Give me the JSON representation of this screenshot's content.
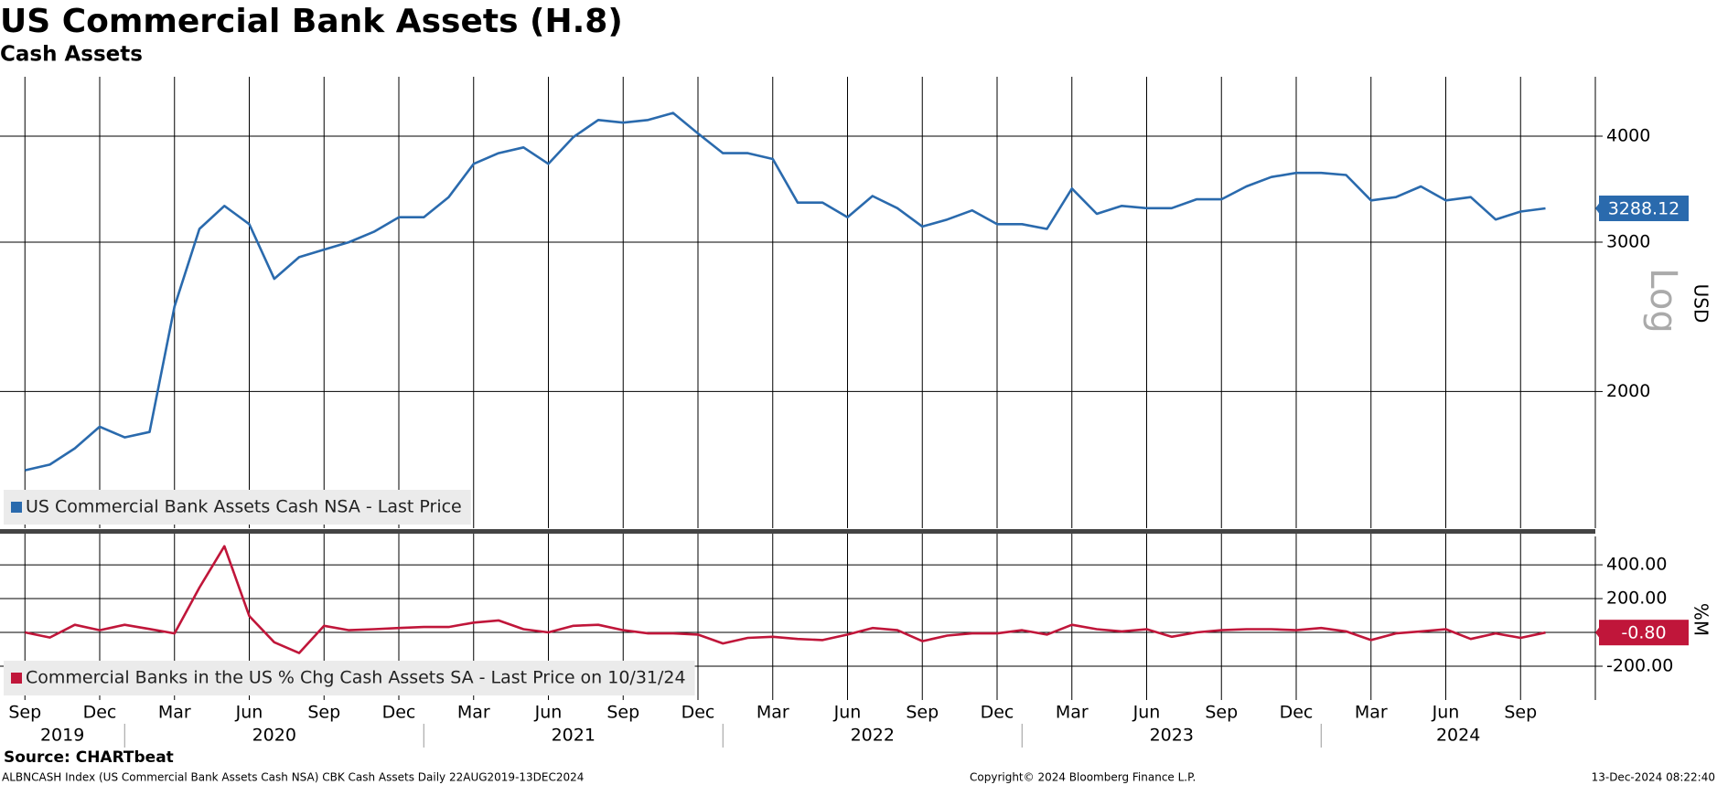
{
  "title": "US Commercial Bank Assets (H.8)",
  "subtitle": "Cash Assets",
  "footer": {
    "source": "Source: CHARTbeat",
    "left": "ALBNCASH Index (US Commercial Bank Assets Cash NSA) CBK Cash Assets  Daily 22AUG2019-13DEC2024",
    "center": "Copyright© 2024 Bloomberg Finance L.P.",
    "right": "13-Dec-2024 08:22:40"
  },
  "chart_data": [
    {
      "type": "line",
      "log_scale": true,
      "scale_label": "Log",
      "y_label": "USD",
      "grid": true,
      "x": [
        "2019-09",
        "2019-10",
        "2019-11",
        "2019-12",
        "2020-01",
        "2020-02",
        "2020-03",
        "2020-04",
        "2020-05",
        "2020-06",
        "2020-07",
        "2020-08",
        "2020-09",
        "2020-10",
        "2020-11",
        "2020-12",
        "2021-01",
        "2021-02",
        "2021-03",
        "2021-04",
        "2021-05",
        "2021-06",
        "2021-07",
        "2021-08",
        "2021-09",
        "2021-10",
        "2021-11",
        "2021-12",
        "2022-01",
        "2022-02",
        "2022-03",
        "2022-04",
        "2022-05",
        "2022-06",
        "2022-07",
        "2022-08",
        "2022-09",
        "2022-10",
        "2022-11",
        "2022-12",
        "2023-01",
        "2023-02",
        "2023-03",
        "2023-04",
        "2023-05",
        "2023-06",
        "2023-07",
        "2023-08",
        "2023-09",
        "2023-10",
        "2023-11",
        "2023-12",
        "2024-01",
        "2024-02",
        "2024-03",
        "2024-04",
        "2024-05",
        "2024-06",
        "2024-07",
        "2024-08",
        "2024-09",
        "2024-10"
      ],
      "xlim": [
        "2019-08",
        "2024-12"
      ],
      "series": [
        {
          "name": "US Commercial Bank Assets Cash NSA - Last Price",
          "color": "#2a6aad",
          "values": [
            1615,
            1640,
            1714,
            1818,
            1766,
            1792,
            2520,
            3110,
            3310,
            3150,
            2716,
            2880,
            2940,
            3000,
            3086,
            3210,
            3210,
            3390,
            3710,
            3820,
            3880,
            3710,
            3990,
            4180,
            4150,
            4180,
            4260,
            4030,
            3820,
            3820,
            3760,
            3340,
            3340,
            3210,
            3400,
            3290,
            3130,
            3190,
            3270,
            3150,
            3150,
            3110,
            3470,
            3240,
            3310,
            3290,
            3290,
            3370,
            3370,
            3490,
            3580,
            3620,
            3620,
            3600,
            3360,
            3390,
            3490,
            3360,
            3390,
            3190,
            3260,
            3288.12
          ]
        }
      ],
      "ylim": [
        1380,
        4700
      ],
      "yticks": [
        2000,
        3000,
        4000
      ]
    },
    {
      "type": "line",
      "y_label": "%M",
      "grid": true,
      "x": [
        "2019-09",
        "2019-10",
        "2019-11",
        "2019-12",
        "2020-01",
        "2020-02",
        "2020-03",
        "2020-04",
        "2020-05",
        "2020-06",
        "2020-07",
        "2020-08",
        "2020-09",
        "2020-10",
        "2020-11",
        "2020-12",
        "2021-01",
        "2021-02",
        "2021-03",
        "2021-04",
        "2021-05",
        "2021-06",
        "2021-07",
        "2021-08",
        "2021-09",
        "2021-10",
        "2021-11",
        "2021-12",
        "2022-01",
        "2022-02",
        "2022-03",
        "2022-04",
        "2022-05",
        "2022-06",
        "2022-07",
        "2022-08",
        "2022-09",
        "2022-10",
        "2022-11",
        "2022-12",
        "2023-01",
        "2023-02",
        "2023-03",
        "2023-04",
        "2023-05",
        "2023-06",
        "2023-07",
        "2023-08",
        "2023-09",
        "2023-10",
        "2023-11",
        "2023-12",
        "2024-01",
        "2024-02",
        "2024-03",
        "2024-04",
        "2024-05",
        "2024-06",
        "2024-07",
        "2024-08",
        "2024-09",
        "2024-10"
      ],
      "xlim": [
        "2019-08",
        "2024-12"
      ],
      "xticks": [
        {
          "value": "2019-09",
          "label": "Sep"
        },
        {
          "value": "2019-12",
          "label": "Dec"
        },
        {
          "value": "2020-03",
          "label": "Mar"
        },
        {
          "value": "2020-06",
          "label": "Jun"
        },
        {
          "value": "2020-09",
          "label": "Sep"
        },
        {
          "value": "2020-12",
          "label": "Dec"
        },
        {
          "value": "2021-03",
          "label": "Mar"
        },
        {
          "value": "2021-06",
          "label": "Jun"
        },
        {
          "value": "2021-09",
          "label": "Sep"
        },
        {
          "value": "2021-12",
          "label": "Dec"
        },
        {
          "value": "2022-03",
          "label": "Mar"
        },
        {
          "value": "2022-06",
          "label": "Jun"
        },
        {
          "value": "2022-09",
          "label": "Sep"
        },
        {
          "value": "2022-12",
          "label": "Dec"
        },
        {
          "value": "2023-03",
          "label": "Mar"
        },
        {
          "value": "2023-06",
          "label": "Jun"
        },
        {
          "value": "2023-09",
          "label": "Sep"
        },
        {
          "value": "2023-12",
          "label": "Dec"
        },
        {
          "value": "2024-03",
          "label": "Mar"
        },
        {
          "value": "2024-06",
          "label": "Jun"
        },
        {
          "value": "2024-09",
          "label": "Sep"
        }
      ],
      "years": [
        "2019",
        "2020",
        "2021",
        "2022",
        "2023",
        "2024"
      ],
      "series": [
        {
          "name": "Commercial Banks in the US % Chg Cash Assets SA - Last Price on 10/31/24",
          "color": "#c0163a",
          "values": [
            0,
            -30,
            45,
            13,
            45,
            20,
            -6,
            265,
            510,
            97,
            -58,
            -122,
            39,
            13,
            19,
            26,
            32,
            32,
            58,
            71,
            19,
            0,
            39,
            45,
            13,
            -6,
            -6,
            -13,
            -65,
            -32,
            -26,
            -39,
            -45,
            -13,
            26,
            13,
            -52,
            -19,
            -6,
            -6,
            13,
            -13,
            45,
            19,
            6,
            19,
            -26,
            0,
            13,
            19,
            19,
            13,
            26,
            6,
            -45,
            -6,
            6,
            19,
            -39,
            -6,
            -32,
            -0.8
          ],
          "value_labels": [
            null,
            null,
            null,
            null,
            null,
            null,
            null,
            null,
            null,
            null,
            null,
            null,
            null,
            null,
            null,
            null,
            null,
            null,
            null,
            null,
            null,
            null,
            null,
            null,
            null,
            null,
            null,
            null,
            null,
            null,
            null,
            null,
            null,
            null,
            null,
            null,
            null,
            null,
            null,
            null,
            null,
            null,
            null,
            null,
            null,
            null,
            null,
            null,
            null,
            null,
            null,
            null,
            null,
            null,
            null,
            null,
            null,
            null,
            null,
            null,
            null,
            "-0.80"
          ]
        }
      ],
      "ylim": [
        -400,
        568
      ],
      "yticks": [
        {
          "value": 400,
          "label": "400.00"
        },
        {
          "value": 200,
          "label": "200.00"
        },
        {
          "value": 0,
          "label": "0.00"
        },
        {
          "value": -200,
          "label": "-200.00"
        }
      ]
    }
  ]
}
